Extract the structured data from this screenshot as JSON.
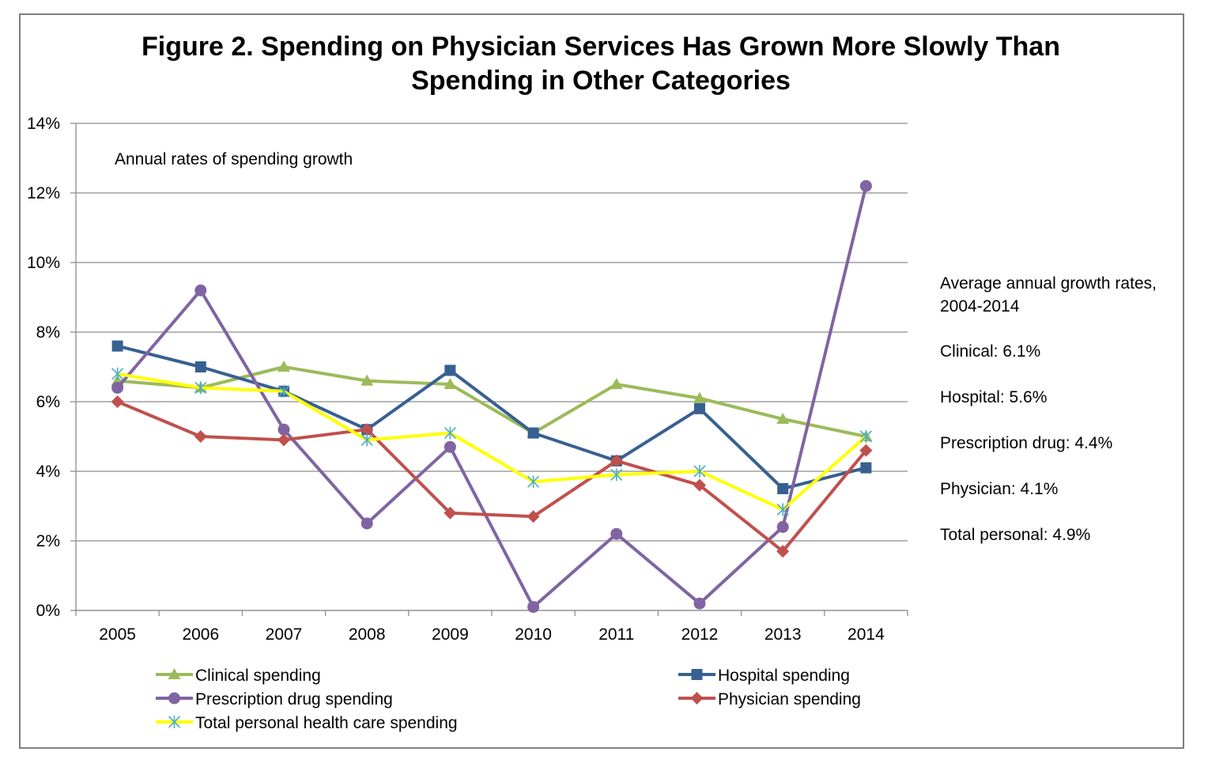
{
  "chart_data": {
    "type": "line",
    "title": "Figure 2. Spending on Physician Services Has Grown More Slowly Than Spending in Other Categories",
    "annotation": "Annual rates of spending growth",
    "x": [
      "2005",
      "2006",
      "2007",
      "2008",
      "2009",
      "2010",
      "2011",
      "2012",
      "2013",
      "2014"
    ],
    "ylim": [
      0,
      14
    ],
    "yticks": [
      0,
      2,
      4,
      6,
      8,
      10,
      12,
      14
    ],
    "ytick_labels": [
      "0%",
      "2%",
      "4%",
      "6%",
      "8%",
      "10%",
      "12%",
      "14%"
    ],
    "grid": true,
    "legend_position": "bottom",
    "series": [
      {
        "name": "Clinical spending",
        "color": "#9bbb59",
        "marker": "triangle",
        "values": [
          6.6,
          6.4,
          7.0,
          6.6,
          6.5,
          5.1,
          6.5,
          6.1,
          5.5,
          5.0
        ]
      },
      {
        "name": "Hospital spending",
        "color": "#376092",
        "marker": "square",
        "values": [
          7.6,
          7.0,
          6.3,
          5.2,
          6.9,
          5.1,
          4.3,
          5.8,
          3.5,
          4.1
        ]
      },
      {
        "name": "Prescription drug spending",
        "color": "#8064a2",
        "marker": "circle",
        "values": [
          6.4,
          9.2,
          5.2,
          2.5,
          4.7,
          0.1,
          2.2,
          0.2,
          2.4,
          12.2
        ]
      },
      {
        "name": "Physician spending",
        "color": "#c0504d",
        "marker": "diamond",
        "values": [
          6.0,
          5.0,
          4.9,
          5.2,
          2.8,
          2.7,
          4.3,
          3.6,
          1.7,
          4.6
        ]
      },
      {
        "name": "Total personal health care spending",
        "color": "#ffff00",
        "marker": "star",
        "marker_color": "#4bacc6",
        "values": [
          6.8,
          6.4,
          6.3,
          4.9,
          5.1,
          3.7,
          3.9,
          4.0,
          2.9,
          5.0
        ]
      }
    ],
    "side_panel": {
      "heading": "Average annual growth rates, 2004-2014",
      "items": [
        "Clinical: 6.1%",
        "Hospital: 5.6%",
        "Prescription drug: 4.4%",
        "Physician: 4.1%",
        "Total personal: 4.9%"
      ]
    }
  }
}
